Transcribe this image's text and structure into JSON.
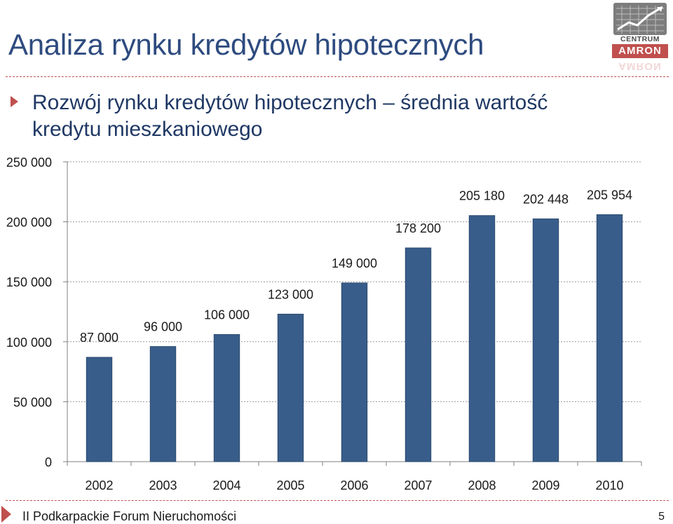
{
  "slide": {
    "title": "Analiza rynku kredytów hipotecznych",
    "subtitle": "Rozwój rynku kredytów hipotecznych – średnia wartość kredytu mieszkaniowego",
    "footer": "II Podkarpackie Forum Nieruchomości",
    "page_number": "5"
  },
  "logo": {
    "line1": "CENTRUM",
    "line2": "AMRON"
  },
  "colors": {
    "accent": "#c0504d",
    "bar": "#385d8a",
    "title": "#2e4b7f"
  },
  "chart_data": {
    "type": "bar",
    "categories": [
      "2002",
      "2003",
      "2004",
      "2005",
      "2006",
      "2007",
      "2008",
      "2009",
      "2010"
    ],
    "values": [
      87000,
      96000,
      106000,
      123000,
      149000,
      178200,
      205180,
      202448,
      205954
    ],
    "data_labels": [
      "87 000",
      "96 000",
      "106 000",
      "123 000",
      "149 000",
      "178 200",
      "205 180",
      "202 448",
      "205 954"
    ],
    "y_ticks": [
      0,
      50000,
      100000,
      150000,
      200000,
      250000
    ],
    "y_tick_labels": [
      "0",
      "50 000",
      "100 000",
      "150 000",
      "200 000",
      "250 000"
    ],
    "ylim": [
      0,
      250000
    ],
    "grid": true,
    "legend": "none"
  }
}
